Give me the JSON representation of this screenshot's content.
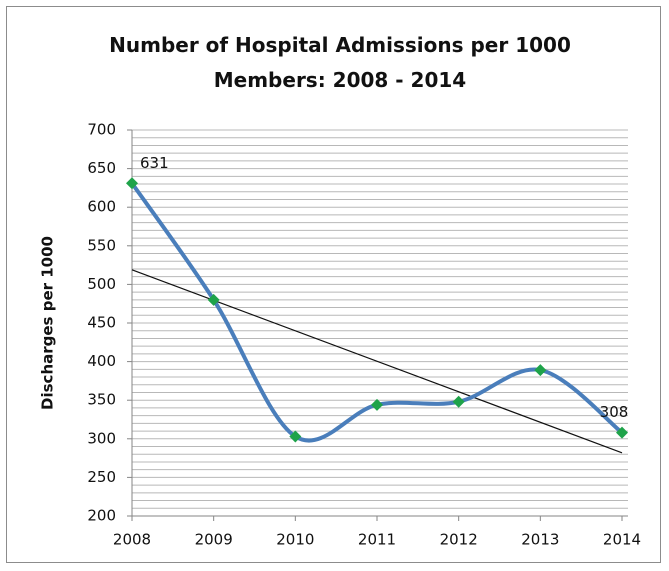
{
  "chart_data": {
    "type": "line",
    "title": "Number of Hospital Admissions per 1000 Members: 2008 - 2014",
    "y_label": "Discharges  per 1000",
    "categories": [
      "2008",
      "2009",
      "2010",
      "2011",
      "2012",
      "2013",
      "2014"
    ],
    "series": [
      {
        "name": "Discharges per 1000",
        "color": "#4a7ebb",
        "marker_color": "#1fa34a",
        "values": [
          631,
          480,
          303,
          344,
          348,
          389,
          308
        ]
      }
    ],
    "ylim": [
      200,
      700
    ],
    "yticks": [
      200,
      250,
      300,
      350,
      400,
      450,
      500,
      550,
      600,
      650,
      700
    ],
    "grid": true,
    "minor_grid_step": 10,
    "smooth": true,
    "trendline": "linear"
  }
}
